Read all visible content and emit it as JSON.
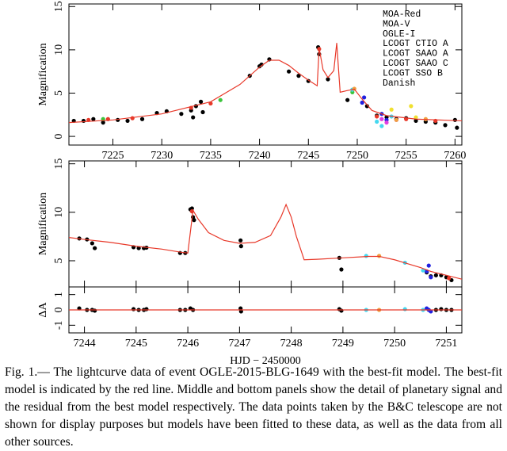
{
  "chart_data": [
    {
      "type": "scatter",
      "y_label": "Magnification",
      "xlim": [
        7220.5,
        7260.7
      ],
      "ylim": [
        -1,
        15.3
      ],
      "xticks": [
        7225,
        7230,
        7235,
        7240,
        7245,
        7250,
        7255,
        7260
      ],
      "yticks": [
        0,
        5,
        10,
        15
      ],
      "model": {
        "color": "#e8392a",
        "x": [
          7220.5,
          7225,
          7230,
          7235,
          7238,
          7240,
          7241,
          7242,
          7243,
          7244,
          7245,
          7245.9,
          7246.1,
          7246.5,
          7247,
          7247.6,
          7247.9,
          7248.1,
          7248.25,
          7249,
          7249.7,
          7250.5,
          7251.5,
          7253,
          7256,
          7260.7
        ],
        "values": [
          1.6,
          1.9,
          2.6,
          4.0,
          6.0,
          8.0,
          8.8,
          8.8,
          8.2,
          7.3,
          6.5,
          5.85,
          10.2,
          7.7,
          6.8,
          7.6,
          10.8,
          7.5,
          5.1,
          5.3,
          5.45,
          4.3,
          3.0,
          2.4,
          2.0,
          1.8
        ]
      },
      "series": [
        {
          "name": "MOA-Red",
          "color": "#000000",
          "x": [
            7221,
            7222,
            7223,
            7224,
            7225.5,
            7226.5,
            7228,
            7229.5,
            7230.5,
            7232,
            7233,
            7233.2,
            7233.5,
            7234,
            7234.2,
            7239,
            7240,
            7240.2,
            7241,
            7243,
            7244,
            7245,
            7246,
            7246.1,
            7247,
            7249,
            7251,
            7252,
            7253,
            7254,
            7255,
            7256,
            7257,
            7258,
            7259,
            7260,
            7260.2
          ],
          "values": [
            1.8,
            1.8,
            2.0,
            1.6,
            1.9,
            1.8,
            2.0,
            2.7,
            2.9,
            2.6,
            3.0,
            2.2,
            3.5,
            4.0,
            2.8,
            7.0,
            8.1,
            8.3,
            8.9,
            7.5,
            7.0,
            6.4,
            10.3,
            9.5,
            6.6,
            4.2,
            3.5,
            2.4,
            2.2,
            2.0,
            2.1,
            1.8,
            1.7,
            1.6,
            1.3,
            1.9,
            1.0
          ]
        },
        {
          "name": "MOA-V",
          "color": "#e8392a",
          "x": [
            7222.5,
            7224.5,
            7227,
            7233,
            7235,
            7246.1,
            7252,
            7255,
            7258
          ],
          "values": [
            1.9,
            2.0,
            2.1,
            3.3,
            3.8,
            10.1,
            2.3,
            2.0,
            1.8
          ]
        },
        {
          "name": "OGLE-I",
          "color": "#3cc43c",
          "x": [
            7224,
            7236,
            7249.5
          ],
          "values": [
            2.0,
            4.2,
            5.1
          ]
        },
        {
          "name": "LCOGT CTIO A",
          "color": "#2020e0",
          "x": [
            7250.5,
            7250.7,
            7252.5,
            7253
          ],
          "values": [
            3.9,
            4.5,
            2.6,
            1.9
          ]
        },
        {
          "name": "LCOGT SAAO A",
          "color": "#44d8f0",
          "x": [
            7249.5,
            7252,
            7252.5,
            7253.5
          ],
          "values": [
            5.4,
            1.7,
            1.2,
            2.3
          ]
        },
        {
          "name": "LCOGT SAAO C",
          "color": "#e040e0",
          "x": [
            7252.5,
            7253,
            7254
          ],
          "values": [
            2.0,
            1.6,
            1.9
          ]
        },
        {
          "name": "LCOGT SSO B",
          "color": "#f0e030",
          "x": [
            7253.5,
            7255.5,
            7256
          ],
          "values": [
            3.1,
            3.5,
            2.2
          ]
        },
        {
          "name": "Danish",
          "color": "#f0a040",
          "x": [
            7249.7,
            7254,
            7257
          ],
          "values": [
            5.5,
            1.9,
            2.0
          ]
        }
      ]
    },
    {
      "type": "scatter",
      "y_label": "Magnification",
      "xlim": [
        7243.7,
        7251.3
      ],
      "ylim": [
        2.3,
        15.3
      ],
      "xticks": [
        7244,
        7245,
        7246,
        7247,
        7248,
        7249,
        7250,
        7251
      ],
      "yticks": [
        5,
        10,
        15
      ],
      "model": {
        "color": "#e8392a",
        "x": [
          7243.7,
          7244,
          7244.5,
          7245,
          7245.5,
          7245.9,
          7246.0,
          7246.05,
          7246.1,
          7246.2,
          7246.4,
          7246.7,
          7247,
          7247.3,
          7247.6,
          7247.8,
          7247.9,
          7248,
          7248.1,
          7248.25,
          7248.5,
          7249,
          7249.5,
          7249.7,
          7250,
          7250.5,
          7250.7,
          7251,
          7251.3
        ],
        "values": [
          7.4,
          7.2,
          6.9,
          6.5,
          6.2,
          5.85,
          5.8,
          8,
          10.2,
          9.3,
          7.9,
          7.1,
          6.8,
          6.9,
          7.6,
          9.5,
          10.8,
          9.5,
          7.5,
          5.1,
          5.15,
          5.3,
          5.45,
          5.45,
          5.1,
          4.3,
          3.9,
          3.5,
          3.1
        ]
      },
      "series": [
        {
          "color": "#000000",
          "x": [
            7243.9,
            7244.05,
            7244.15,
            7244.2,
            7244.95,
            7245.05,
            7245.15,
            7245.2,
            7245.85,
            7245.95,
            7246.05,
            7246.08,
            7246.1,
            7246.12,
            7247.02,
            7247.03,
            7248.93,
            7248.97,
            7250.62,
            7250.7,
            7250.8,
            7250.9,
            7251.0,
            7251.1
          ],
          "values": [
            7.3,
            7.2,
            6.8,
            6.3,
            6.4,
            6.3,
            6.3,
            6.35,
            5.8,
            5.8,
            10.3,
            10.4,
            9.5,
            9.2,
            7.1,
            6.5,
            5.3,
            4.1,
            3.8,
            3.4,
            3.5,
            3.5,
            3.3,
            3.0
          ]
        },
        {
          "color": "#2020e0",
          "x": [
            7250.62,
            7250.66,
            7250.7
          ],
          "values": [
            3.9,
            4.5,
            3.3
          ]
        },
        {
          "color": "#44d8f0",
          "x": [
            7249.45,
            7250.2,
            7250.55
          ],
          "values": [
            5.5,
            4.8,
            4.0
          ]
        },
        {
          "color": "#e8392a",
          "x": [
            7246.08,
            7251.05
          ],
          "values": [
            10.1,
            3.2
          ]
        },
        {
          "color": "#f0a040",
          "x": [
            7249.7
          ],
          "values": [
            5.5
          ]
        }
      ]
    },
    {
      "type": "scatter",
      "y_label": "ΔA",
      "x_label": "HJD − 2450000",
      "xlim": [
        7243.7,
        7251.3
      ],
      "ylim": [
        -1.5,
        1.5
      ],
      "xticks": [
        7244,
        7245,
        7246,
        7247,
        7248,
        7249,
        7250,
        7251
      ],
      "yticks": [
        -1,
        0,
        1
      ],
      "model": {
        "color": "#e8392a",
        "x": [
          7243.7,
          7251.3
        ],
        "values": [
          0,
          0
        ]
      },
      "series": [
        {
          "color": "#000000",
          "x": [
            7243.9,
            7244.05,
            7244.15,
            7244.2,
            7244.95,
            7245.05,
            7245.15,
            7245.2,
            7245.85,
            7245.95,
            7246.05,
            7246.1,
            7247.02,
            7247.03,
            7248.93,
            7248.97,
            7250.8,
            7250.9,
            7251.0,
            7251.1
          ],
          "values": [
            0.1,
            0,
            0,
            -0.05,
            0.05,
            0,
            0,
            0.05,
            0,
            0,
            0.1,
            0,
            0.1,
            -0.1,
            0.05,
            -0.05,
            0,
            0.05,
            0,
            0
          ]
        },
        {
          "color": "#2020e0",
          "x": [
            7250.62,
            7250.66,
            7250.7
          ],
          "values": [
            0.1,
            0,
            -0.1
          ]
        },
        {
          "color": "#44d8f0",
          "x": [
            7249.45,
            7250.2,
            7250.55
          ],
          "values": [
            0,
            0.05,
            0
          ]
        },
        {
          "color": "#f0a040",
          "x": [
            7249.7
          ],
          "values": [
            0
          ]
        }
      ]
    }
  ],
  "caption": "Fig. 1.— The lightcurve data of event OGLE-2015-BLG-1649 with the best-fit model. The best-fit model is indicated by the red line. Middle and bottom panels show the detail of planetary signal and the residual from the best model respectively. The data points taken by the B&C telescope are not shown for display purposes but models have been fitted to these data, as well as the data from all other sources."
}
